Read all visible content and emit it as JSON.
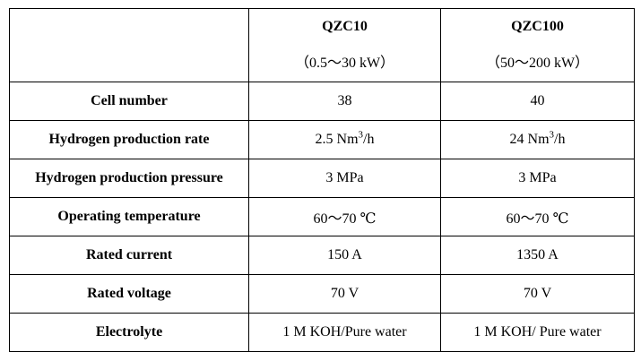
{
  "table": {
    "header": {
      "corner": "",
      "models": [
        {
          "name": "QZC10",
          "range": "（0.5～30 kW）"
        },
        {
          "name": "QZC100",
          "range": "（50～200 kW）"
        }
      ]
    },
    "rows": [
      {
        "label": "Cell number",
        "values": [
          "38",
          "40"
        ]
      },
      {
        "label": "Hydrogen production rate",
        "values": [
          "2.5 Nm",
          "24 Nm"
        ],
        "unit_sup": "3",
        "unit_suffix": "/h"
      },
      {
        "label": "Hydrogen production pressure",
        "values": [
          "3 MPa",
          "3 MPa"
        ]
      },
      {
        "label": "Operating temperature",
        "values": [
          "60～70 ℃",
          "60～70 ℃"
        ]
      },
      {
        "label": "Rated current",
        "values": [
          "150 A",
          "1350 A"
        ]
      },
      {
        "label": "Rated voltage",
        "values": [
          "70 V",
          "70 V"
        ]
      },
      {
        "label": "Electrolyte",
        "values": [
          "1 M KOH/Pure water",
          "1 M KOH/ Pure water"
        ]
      }
    ]
  }
}
